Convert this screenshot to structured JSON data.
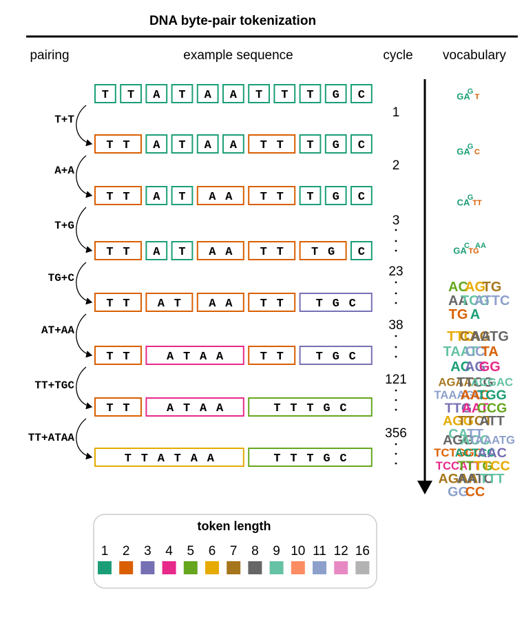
{
  "title": "DNA byte-pair tokenization",
  "headers": {
    "pairing": "pairing",
    "sequence": "example sequence",
    "cycle": "cycle",
    "vocabulary": "vocabulary"
  },
  "colors": {
    "1": "#1b9e77",
    "2": "#d95f02",
    "3": "#7570b3",
    "4": "#e7298a",
    "5": "#66a61e",
    "6": "#e6ab02",
    "7": "#a6761d",
    "8": "#666666",
    "9": "#66c2a5",
    "10": "#fc8d62",
    "11": "#8da0cb",
    "12": "#e78ac3",
    "16": "#b3b3b3"
  },
  "rows": [
    {
      "tokens": [
        "T",
        "T",
        "A",
        "T",
        "A",
        "A",
        "T",
        "T",
        "T",
        "G",
        "C"
      ]
    },
    {
      "tokens": [
        "TT",
        "A",
        "T",
        "A",
        "A",
        "TT",
        "T",
        "G",
        "C"
      ]
    },
    {
      "tokens": [
        "TT",
        "A",
        "T",
        "AA",
        "TT",
        "T",
        "G",
        "C"
      ]
    },
    {
      "tokens": [
        "TT",
        "A",
        "T",
        "AA",
        "TT",
        "TG",
        "C"
      ]
    },
    {
      "tokens": [
        "TT",
        "AT",
        "AA",
        "TT",
        "TGC"
      ]
    },
    {
      "tokens": [
        "TT",
        "ATAA",
        "TT",
        "TGC"
      ]
    },
    {
      "tokens": [
        "TT",
        "ATAA",
        "TTTGC"
      ]
    },
    {
      "tokens": [
        "TTATAA",
        "TTTGC"
      ]
    }
  ],
  "pairings": [
    "T+T",
    "A+A",
    "T+G",
    "TG+C",
    "AT+AA",
    "TT+TGC",
    "TT+ATAA"
  ],
  "cycles": [
    "1",
    "2",
    "3",
    "23",
    "38",
    "121",
    "356"
  ],
  "vocabulary": [
    {
      "words": [
        "GA",
        "G",
        "T"
      ]
    },
    {
      "words": [
        "GA",
        "G",
        "C"
      ]
    },
    {
      "words": [
        "CA",
        "G",
        "TT"
      ]
    },
    {
      "words": [
        "GA",
        "C",
        "TG",
        "AA"
      ]
    },
    {
      "words": [
        "AC",
        "AG",
        "TG",
        "AA",
        "TCG",
        "ATTC",
        "TG",
        "A"
      ]
    },
    {
      "words": [
        "TTC",
        "CAG",
        "AATG",
        "TAAT",
        "CC",
        "TA",
        "AC",
        "AG",
        "GG"
      ]
    },
    {
      "words": [
        "AGAAT",
        "TTCG",
        "ACGAC",
        "TAAAGC",
        "AAC",
        "TGG",
        "TTG",
        "AAT",
        "CCG",
        "AGG",
        "TTCT",
        "ATT",
        "CA",
        "TT"
      ]
    },
    {
      "words": [
        "AGG",
        "ACC",
        "TAAATG",
        "TCTGGC",
        "ACTCC",
        "AAC",
        "TCCATT",
        "TTTG",
        "TTCC",
        "AGAA",
        "AATC",
        "TTT",
        "GG",
        "CC"
      ]
    }
  ],
  "legend": {
    "title": "token length",
    "items": [
      "1",
      "2",
      "3",
      "4",
      "5",
      "6",
      "7",
      "8",
      "9",
      "10",
      "11",
      "12",
      "16"
    ]
  }
}
